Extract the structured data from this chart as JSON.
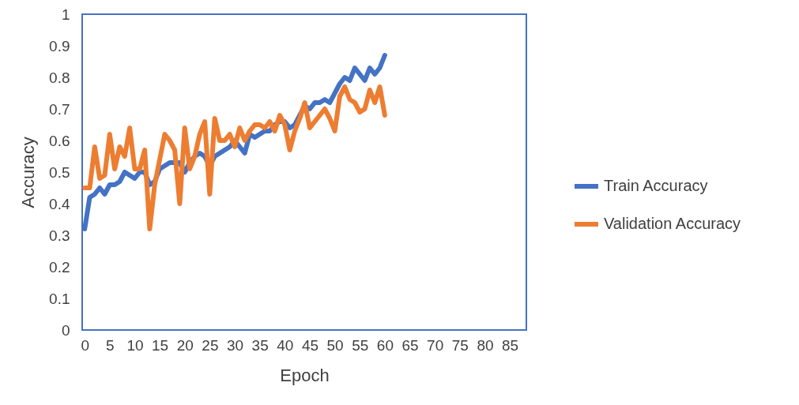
{
  "chart_data": {
    "type": "line",
    "xlabel": "Epoch",
    "ylabel": "Accuracy",
    "x": [
      0,
      1,
      2,
      3,
      4,
      5,
      6,
      7,
      8,
      9,
      10,
      11,
      12,
      13,
      14,
      15,
      16,
      17,
      18,
      19,
      20,
      21,
      22,
      23,
      24,
      25,
      26,
      27,
      28,
      29,
      30,
      31,
      32,
      33,
      34,
      35,
      36,
      37,
      38,
      39,
      40,
      41,
      42,
      43,
      44,
      45,
      46,
      47,
      48,
      49,
      50,
      51,
      52,
      53,
      54,
      55,
      56,
      57,
      58,
      59,
      60
    ],
    "series": [
      {
        "name": "Train Accuracy",
        "color": "#4472c4",
        "values": [
          0.32,
          0.42,
          0.43,
          0.45,
          0.43,
          0.46,
          0.46,
          0.47,
          0.5,
          0.49,
          0.48,
          0.5,
          0.5,
          0.46,
          0.47,
          0.51,
          0.52,
          0.53,
          0.53,
          0.53,
          0.5,
          0.53,
          0.55,
          0.56,
          0.55,
          0.52,
          0.55,
          0.56,
          0.57,
          0.58,
          0.6,
          0.58,
          0.56,
          0.62,
          0.61,
          0.62,
          0.63,
          0.63,
          0.65,
          0.66,
          0.66,
          0.64,
          0.65,
          0.68,
          0.71,
          0.7,
          0.72,
          0.72,
          0.73,
          0.72,
          0.75,
          0.78,
          0.8,
          0.79,
          0.83,
          0.81,
          0.79,
          0.83,
          0.81,
          0.83,
          0.87
        ]
      },
      {
        "name": "Validation Accuracy",
        "color": "#ed7d31",
        "values": [
          0.45,
          0.45,
          0.58,
          0.48,
          0.49,
          0.62,
          0.51,
          0.58,
          0.55,
          0.64,
          0.51,
          0.51,
          0.57,
          0.32,
          0.46,
          0.54,
          0.62,
          0.6,
          0.57,
          0.4,
          0.64,
          0.51,
          0.55,
          0.62,
          0.66,
          0.43,
          0.67,
          0.6,
          0.6,
          0.62,
          0.58,
          0.64,
          0.6,
          0.63,
          0.65,
          0.65,
          0.64,
          0.66,
          0.63,
          0.68,
          0.65,
          0.57,
          0.63,
          0.67,
          0.72,
          0.64,
          0.66,
          0.68,
          0.7,
          0.67,
          0.63,
          0.74,
          0.77,
          0.73,
          0.72,
          0.69,
          0.7,
          0.76,
          0.72,
          0.77,
          0.68
        ]
      }
    ],
    "xlim": [
      -0.5,
      88.3
    ],
    "xticks": [
      0,
      5,
      10,
      15,
      20,
      25,
      30,
      35,
      40,
      45,
      50,
      55,
      60,
      65,
      70,
      75,
      80,
      85
    ],
    "ylim": [
      0,
      1
    ],
    "yticks": [
      0,
      0.1,
      0.2,
      0.3,
      0.4,
      0.5,
      0.6,
      0.7,
      0.8,
      0.9,
      1
    ],
    "grid": false,
    "legend": "right",
    "marker": "none",
    "line_style": "solid"
  }
}
